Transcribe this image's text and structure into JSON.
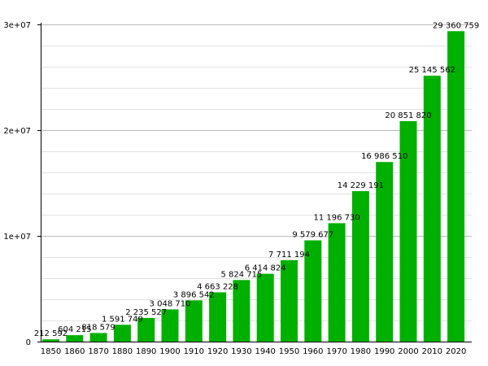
{
  "chart_data": {
    "type": "bar",
    "title": "",
    "xlabel": "",
    "ylabel": "",
    "categories": [
      "1850",
      "1860",
      "1870",
      "1880",
      "1890",
      "1900",
      "1910",
      "1920",
      "1930",
      "1940",
      "1950",
      "1960",
      "1970",
      "1980",
      "1990",
      "2000",
      "2010",
      "2020"
    ],
    "values": [
      212592,
      604215,
      818579,
      1591749,
      2235527,
      3048710,
      3896542,
      4663228,
      5824715,
      6414824,
      7711194,
      9579677,
      11196730,
      14229191,
      16986510,
      20851820,
      25145562,
      29360759
    ],
    "data_labels": [
      "212 592",
      "604 215",
      "818 579",
      "1 591 749",
      "2 235 527",
      "3 048 710",
      "3 896 542",
      "4 663 228",
      "5 824 715",
      "6 414 824",
      "7 711 194",
      "9 579 677",
      "11 196 730",
      "14 229 191",
      "16 986 510",
      "20 851 820",
      "25 145 562",
      "29 360 759"
    ],
    "y_ticks": [
      {
        "value": 0,
        "label": "0"
      },
      {
        "value": 10000000,
        "label": "1e+07"
      },
      {
        "value": 20000000,
        "label": "2e+07"
      },
      {
        "value": 30000000,
        "label": "3e+07"
      }
    ],
    "ylim": [
      0,
      30000000
    ],
    "minor_grid_step": 2000000,
    "grid": true,
    "colors": {
      "bar": "#00b000",
      "major_grid": "#bbbbbb",
      "minor_grid": "#e2e2e2",
      "axis": "#000000"
    }
  }
}
